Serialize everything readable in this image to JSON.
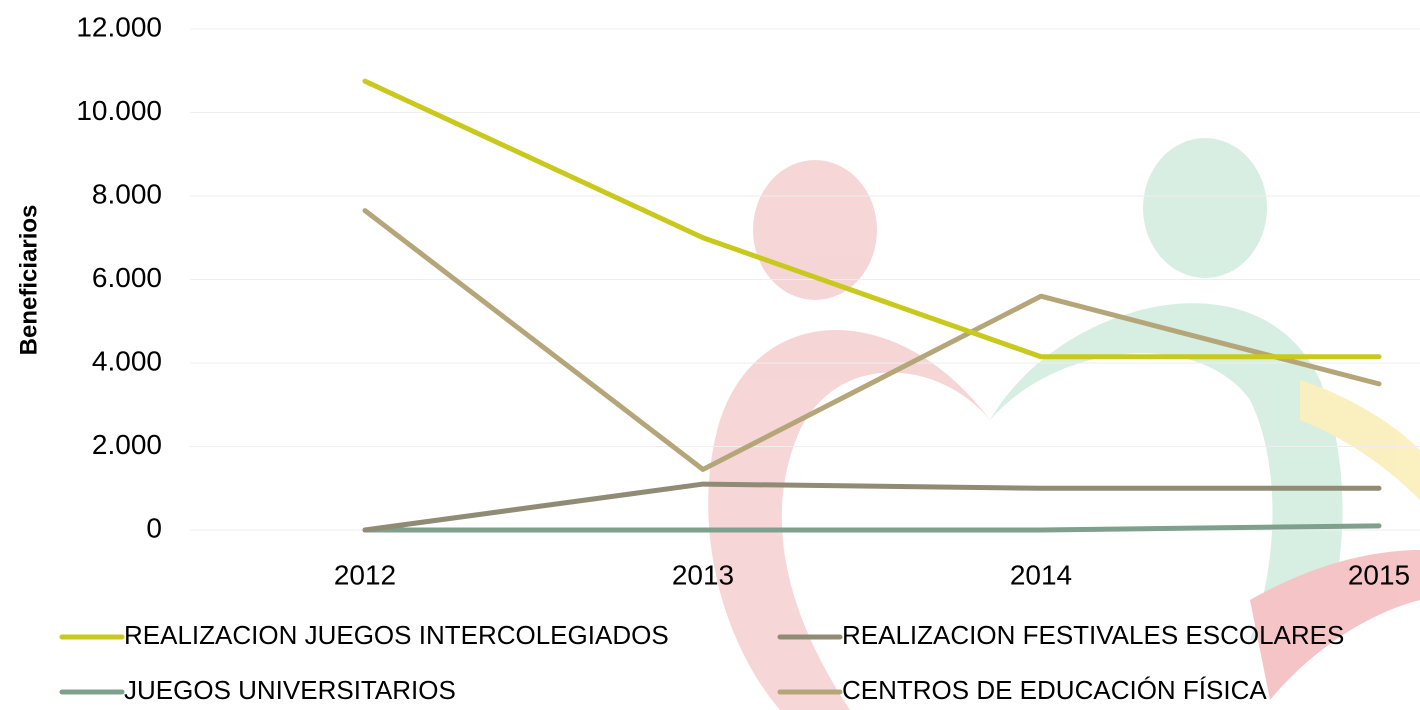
{
  "chart_data": {
    "type": "line",
    "y_label": "Beneficiarios",
    "categories": [
      "2012",
      "2013",
      "2014",
      "2015"
    ],
    "series": [
      {
        "name": "REALIZACION JUEGOS INTERCOLEGIADOS",
        "color": "#c9c81c",
        "values": [
          10750,
          7000,
          4150,
          4150
        ]
      },
      {
        "name": "REALIZACION FESTIVALES ESCOLARES",
        "color": "#8f8b75",
        "values": [
          0,
          1100,
          1000,
          1000
        ]
      },
      {
        "name": "JUEGOS UNIVERSITARIOS",
        "color": "#7fa08c",
        "values": [
          0,
          0,
          0,
          100
        ]
      },
      {
        "name": "CENTROS DE EDUCACIÓN FÍSICA",
        "color": "#b5a679",
        "values": [
          7650,
          1450,
          5600,
          3500
        ]
      }
    ],
    "ylim": [
      0,
      12000
    ],
    "yticks": [
      0,
      {
        "value": 2000,
        "label": "2.000"
      },
      {
        "value": 4000,
        "label": "4.000"
      },
      {
        "value": 6000,
        "label": "6.000"
      },
      {
        "value": 8000,
        "label": "8.000"
      },
      {
        "value": 10000,
        "label": "10.000"
      },
      {
        "value": 12000,
        "label": "12.000"
      }
    ],
    "grid": true
  }
}
